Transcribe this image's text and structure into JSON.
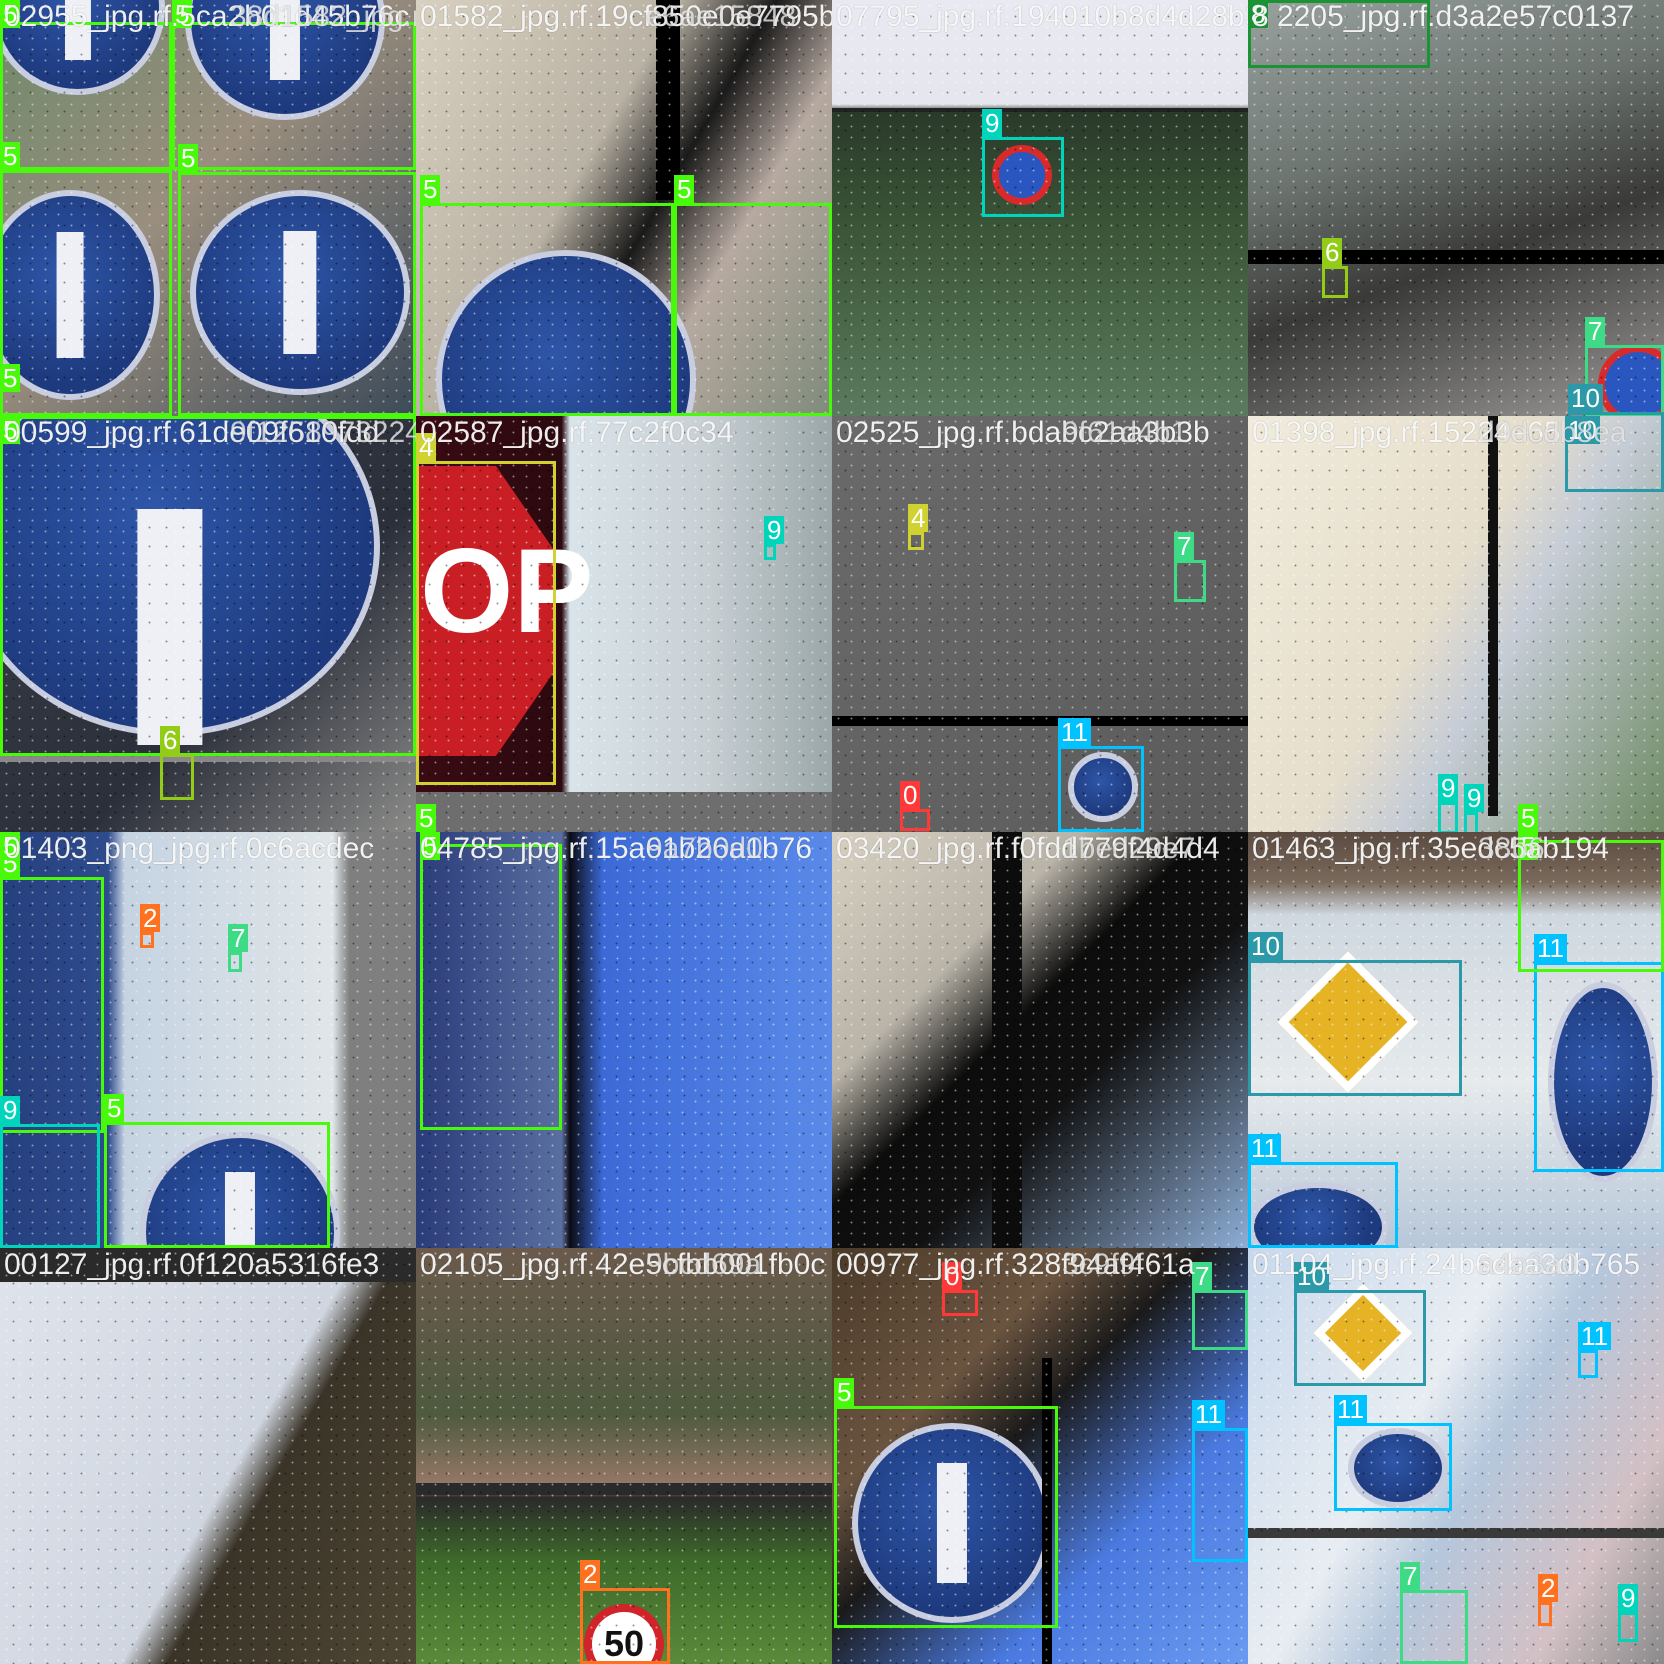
{
  "colors": {
    "0": "#ff3838",
    "2": "#ff701f",
    "4": "#cfd231",
    "5": "#48f90a",
    "6": "#92cc17",
    "7": "#3ddb86",
    "8": "#1a9334",
    "9": "#00d4bb",
    "10": "#2c99a8",
    "11": "#00c2ff"
  },
  "tiles": [
    {
      "filename": "02955_jpg.rf.5ca2b01d45b76c",
      "overlay": "38d1582_jpg.rf.19cf850e0",
      "bg": "linear-gradient(135deg,#6e8a6a 0%,#9a8e7e 45%,#3c4a58 100%)",
      "boxes": [
        {
          "cls": "5",
          "label": "5"
        },
        {
          "cls": "5",
          "label": "5"
        },
        {
          "cls": "5",
          "label": "5"
        },
        {
          "cls": "5",
          "label": "5"
        },
        {
          "cls": "5",
          "label": "5"
        }
      ]
    },
    {
      "filename": "01582_jpg.rf.19cf850e0e7795b",
      "overlay": "e6ae15848",
      "bg": "linear-gradient(120deg,#d8d0c0 0%,#b9b2a4 40%,#1a1a1a 55%,#b6a9a0 70%,#7f8b7a 100%)",
      "boxes": [
        {
          "cls": "5",
          "label": "5"
        },
        {
          "cls": "5",
          "label": "5"
        }
      ]
    },
    {
      "filename": "07795_jpg.rf.194010b8d4d28b3e59",
      "bg": "linear-gradient(180deg,#e9e9f2 0%,#e6e6ee 25%,#2a3a2a 27%,#3e5a3a 60%,#5b7a5f 100%)",
      "boxes": [
        {
          "cls": "9",
          "label": "9"
        }
      ]
    },
    {
      "filename": "8 2205_jpg.rf.d3a2e57c0137",
      "bg": "linear-gradient(160deg,#9aa2a0 0%,#6c7470 35%,#3a3a38 60%,#9b9a98 100%)",
      "boxes": [
        {
          "cls": "8",
          "label": "8"
        },
        {
          "cls": "6",
          "label": "6"
        },
        {
          "cls": "7",
          "label": "7"
        },
        {
          "cls": "10",
          "label": "10"
        }
      ]
    },
    {
      "filename": "00599_jpg.rf.61de09f610fdd",
      "overlay": "9f12589732245bb7",
      "bg": "linear-gradient(135deg,#3a3e48 0%,#2b2f3a 60%,#8a8a88 100%)",
      "boxes": [
        {
          "cls": "5",
          "label": "5"
        },
        {
          "cls": "6",
          "label": "6"
        }
      ]
    },
    {
      "filename": "02587_jpg.rf.77c2f0c34",
      "bg": "linear-gradient(90deg,#3a0a12 0%,#2b0a10 35%,#d9e4ea 37%,#c7cfd3 70%,#9aa7a8 100%)",
      "boxes": [
        {
          "cls": "4",
          "label": "4"
        },
        {
          "cls": "9",
          "label": "9"
        },
        {
          "cls": "5",
          "label": "5"
        }
      ]
    },
    {
      "filename": "02525_jpg.rf.bdabc2aa3b3b",
      "overlay": "9f61d4b1",
      "bg": "linear-gradient(135deg,#6a6a6a 0%,#5b5b5b 100%)",
      "boxes": [
        {
          "cls": "4",
          "label": "4"
        },
        {
          "cls": "7",
          "label": "7"
        },
        {
          "cls": "11",
          "label": "11"
        },
        {
          "cls": "0",
          "label": "0"
        }
      ]
    },
    {
      "filename": "01398_jpg.rf.15224e65",
      "overlay": "d9dcdb8ea",
      "bg": "linear-gradient(120deg,#f0ebdc 0%,#e6decc 45%,#c5ccd6 60%,#6f8a64 100%)",
      "boxes": [
        {
          "cls": "10",
          "label": "10"
        },
        {
          "cls": "9",
          "label": "9"
        },
        {
          "cls": "9",
          "label": "9"
        },
        {
          "cls": "5",
          "label": "5"
        }
      ]
    },
    {
      "filename": "01403_png_jpg.rf.0c6acdec",
      "bg": "linear-gradient(90deg,#25407e 0%,#2e4b8c 26%,#c5d3e2 30%,#e0e6e8 80%,#7f7f7f 84%,#7f7f7f 100%)",
      "boxes": [
        {
          "cls": "5",
          "label": "5"
        },
        {
          "cls": "2",
          "label": "2"
        },
        {
          "cls": "7",
          "label": "7"
        },
        {
          "cls": "9",
          "label": "9"
        },
        {
          "cls": "5",
          "label": "5"
        },
        {
          "cls": "5",
          "label": "5"
        }
      ]
    },
    {
      "filename": "04785_jpg.rf.15a61b26a1b76",
      "overlay": "9a7b0d0",
      "bg": "linear-gradient(90deg,#2a3b7a 0%,#5a6fa0 35%,#0a0a12 37%,#3b6ad8 45%,#5a8ae8 100%)",
      "boxes": [
        {
          "cls": "5",
          "label": "5"
        }
      ]
    },
    {
      "filename": "03420_jpg.rf.f0fdd779f4d4d4",
      "overlay": "1bed29e7",
      "bg": "linear-gradient(135deg,#d6d0c2 0%,#b9b4a8 30%,#0c0c0c 45%,#111 60%,#8eaed6 100%)",
      "boxes": []
    },
    {
      "filename": "01463_jpg.rf.35edc5ab194",
      "overlay": "38b6",
      "bg": "linear-gradient(180deg,#5a4a40 0%,#7a6a5c 12%,#cfd8e0 20%,#e6eaec 60%,#b7c7d8 100%)",
      "boxes": [
        {
          "cls": "10",
          "label": "10"
        },
        {
          "cls": "11",
          "label": "11"
        },
        {
          "cls": "11",
          "label": "11"
        },
        {
          "cls": "5",
          "label": "5"
        }
      ]
    },
    {
      "filename": "00127_jpg.rf.0f120a5316fe3",
      "bg": "linear-gradient(120deg,#dfe4ec 0%,#d0d6e0 55%,#3a3428 62%,#4e4634 100%)",
      "boxes": []
    },
    {
      "filename": "02105_jpg.rf.42e5cfbb001fb0c",
      "overlay": "9bcd69a",
      "bg": "linear-gradient(180deg,#6b5a4c 0%,#4f5a3e 40%,#9a7a6a 58%,#2a2a2a 60%,#3d6a2a 75%,#5a8a3a 100%)",
      "boxes": [
        {
          "cls": "2",
          "label": "2"
        }
      ]
    },
    {
      "filename": "00977_jpg.rf.328f94af461a",
      "overlay": "3c9f9f",
      "bg": "linear-gradient(135deg,#4a3a28 0%,#6a5440 30%,#1a1a1a 45%,#4a7ae0 70%,#6a9af0 100%)",
      "boxes": [
        {
          "cls": "0",
          "label": "0"
        },
        {
          "cls": "7",
          "label": "7"
        },
        {
          "cls": "5",
          "label": "5"
        },
        {
          "cls": "11",
          "label": "11"
        }
      ]
    },
    {
      "filename": "01104_jpg.rf.24b6cba3db765",
      "overlay": "a4a3a0",
      "bg": "linear-gradient(120deg,#c7d8ec 0%,#e8edf2 40%,#b5c7dc 55%,#d2c0c4 80%,#8a8a8a 100%)",
      "boxes": [
        {
          "cls": "10",
          "label": "10"
        },
        {
          "cls": "11",
          "label": "11"
        },
        {
          "cls": "11",
          "label": "11"
        },
        {
          "cls": "7",
          "label": "7"
        },
        {
          "cls": "2",
          "label": "2"
        },
        {
          "cls": "9",
          "label": "9"
        }
      ]
    }
  ],
  "signs": {
    "stop_text": "OP",
    "speed_limit": "50"
  }
}
